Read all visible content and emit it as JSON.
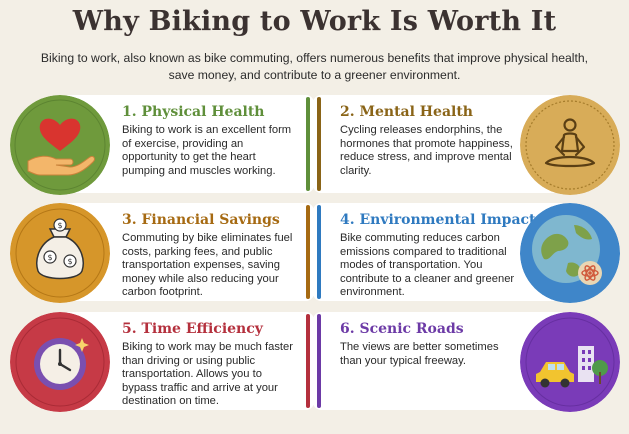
{
  "page": {
    "title": "Why Biking to Work Is Worth It",
    "subtitle": "Biking to work, also known as bike commuting, offers numerous benefits that improve physical health, save money, and contribute to a greener environment."
  },
  "colors": {
    "physical": "#5f8f3a",
    "mental": "#8a6417",
    "financial": "#a66a12",
    "environmental": "#2f7ac0",
    "time": "#b4303d",
    "scenic": "#6c3aa6"
  },
  "benefits": [
    {
      "title": "1. Physical Health",
      "text": "Biking to work is an excellent form of exercise, providing an opportunity to get the heart pumping and muscles working.",
      "icon": "heart-in-hand-icon"
    },
    {
      "title": "2. Mental Health",
      "text": "Cycling releases endorphins, the hormones that promote happiness, reduce stress, and improve mental clarity.",
      "icon": "meditation-icon"
    },
    {
      "title": "3. Financial Savings",
      "text": "Commuting by bike eliminates fuel costs, parking fees, and public transportation expenses, saving money while also reducing your carbon footprint.",
      "icon": "money-bag-icon"
    },
    {
      "title": "4. Environmental Impact",
      "text": "Bike commuting reduces carbon emissions compared to traditional modes of transportation. You contribute to a cleaner and greener environment.",
      "icon": "globe-icon"
    },
    {
      "title": "5. Time Efficiency",
      "text": "Biking to work may be much faster than driving or using public transportation. Allows you to bypass traffic and arrive at your destination on time.",
      "icon": "clock-icon"
    },
    {
      "title": "6. Scenic Roads",
      "text": "The views are better sometimes than your typical freeway.",
      "icon": "scenic-road-icon"
    }
  ]
}
